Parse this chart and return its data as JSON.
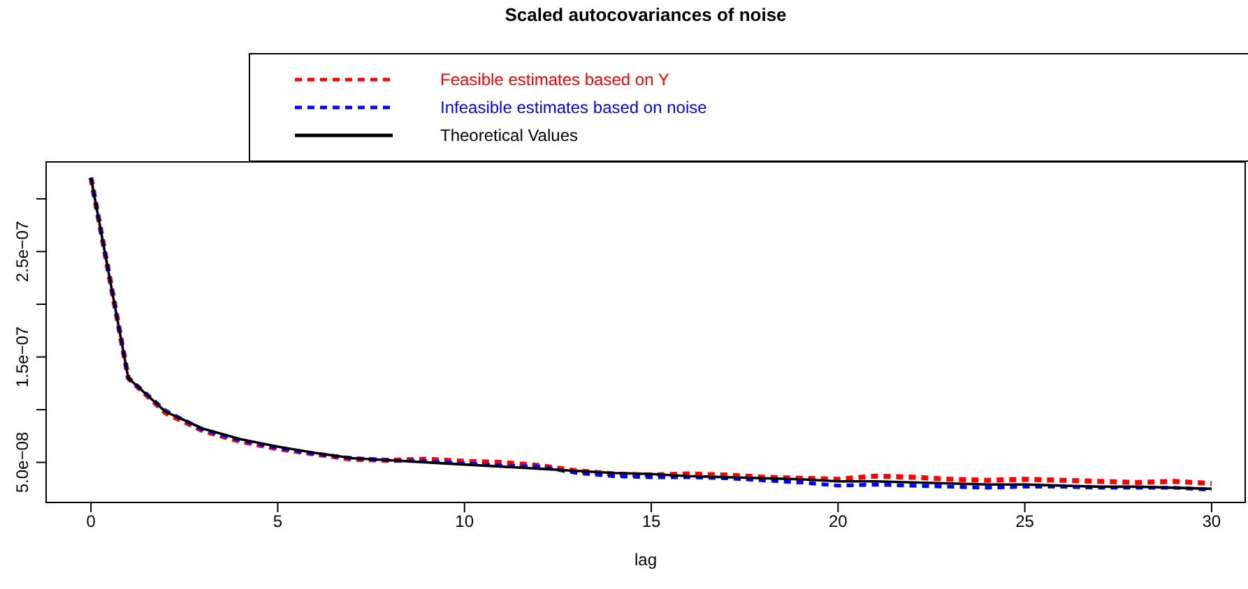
{
  "chart_data": {
    "type": "line",
    "title": "Scaled autocovariances of noise",
    "xlabel": "lag",
    "x": [
      0,
      1,
      2,
      3,
      4,
      5,
      6,
      7,
      8,
      9,
      10,
      11,
      12,
      13,
      14,
      15,
      16,
      17,
      18,
      19,
      20,
      21,
      22,
      23,
      24,
      25,
      26,
      27,
      28,
      29,
      30
    ],
    "series": [
      {
        "name": "Feasible estimates based on Y",
        "color": "#ff0000",
        "line_style": "dashed",
        "values": [
          3.2e-07,
          1.3e-07,
          9.7e-08,
          8e-08,
          7e-08,
          6.3e-08,
          5.8e-08,
          5.3e-08,
          5.2e-08,
          5.3e-08,
          5.1e-08,
          5e-08,
          4.7e-08,
          4.2e-08,
          3.9e-08,
          3.8e-08,
          3.9e-08,
          3.8e-08,
          3.6e-08,
          3.5e-08,
          3.4e-08,
          3.7e-08,
          3.6e-08,
          3.4e-08,
          3.3e-08,
          3.4e-08,
          3.3e-08,
          3.2e-08,
          3.1e-08,
          3.2e-08,
          3e-08
        ]
      },
      {
        "name": "Infeasible estimates based on noise",
        "color": "#0000ff",
        "line_style": "dashed",
        "values": [
          3.2e-07,
          1.3e-07,
          9.9e-08,
          8.1e-08,
          7.1e-08,
          6.4e-08,
          5.8e-08,
          5.4e-08,
          5.2e-08,
          5.1e-08,
          4.9e-08,
          4.7e-08,
          4.6e-08,
          4e-08,
          3.7e-08,
          3.6e-08,
          3.6e-08,
          3.5e-08,
          3.3e-08,
          3.1e-08,
          2.8e-08,
          2.9e-08,
          2.8e-08,
          2.7e-08,
          2.6e-08,
          2.7e-08,
          2.7e-08,
          2.6e-08,
          2.6e-08,
          2.6e-08,
          2.4e-08
        ]
      },
      {
        "name": "Theoretical Values",
        "color": "#000000",
        "line_style": "solid",
        "values": [
          3.2e-07,
          1.3e-07,
          9.8e-08,
          8.2e-08,
          7.2e-08,
          6.5e-08,
          5.9e-08,
          5.4e-08,
          5.2e-08,
          5e-08,
          4.8e-08,
          4.6e-08,
          4.4e-08,
          4.2e-08,
          4e-08,
          3.9e-08,
          3.7e-08,
          3.6e-08,
          3.5e-08,
          3.4e-08,
          3.2e-08,
          3.2e-08,
          3.1e-08,
          3e-08,
          2.9e-08,
          2.9e-08,
          2.8e-08,
          2.7e-08,
          2.7e-08,
          2.6e-08,
          2.5e-08
        ]
      }
    ],
    "xlim": [
      -1.2,
      30.9
    ],
    "xticks": [
      0,
      5,
      10,
      15,
      20,
      25,
      30
    ],
    "ylim": [
      1.2e-08,
      3.35e-07
    ],
    "yticks": [
      {
        "value": 5e-08,
        "label": "5.0e−08"
      },
      {
        "value": 1e-07,
        "label": null
      },
      {
        "value": 1.5e-07,
        "label": "1.5e−07"
      },
      {
        "value": 2e-07,
        "label": null
      },
      {
        "value": 2.5e-07,
        "label": "2.5e−07"
      },
      {
        "value": 3e-07,
        "label": null
      }
    ],
    "grid": false,
    "legend": "top",
    "marker": "none"
  }
}
